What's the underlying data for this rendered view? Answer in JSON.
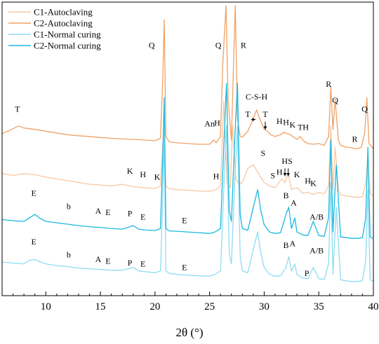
{
  "chart_data": {
    "type": "line",
    "xlabel": "2θ (°)",
    "ylabel": "",
    "xlim": [
      6,
      40
    ],
    "x_ticks": [
      10,
      15,
      20,
      25,
      30,
      35,
      40
    ],
    "y_ticks_shown": false,
    "legend_position": "top-left",
    "series": [
      {
        "name": "C1-Autoclaving",
        "color": "#f8c8a4",
        "x": [
          6,
          7,
          8,
          9,
          10,
          11,
          12,
          13,
          14,
          15,
          16,
          17,
          18,
          19,
          20,
          20.5,
          20.8,
          21.0,
          21.3,
          22,
          23,
          24,
          25,
          25.6,
          26,
          26.3,
          26.6,
          26.9,
          27.1,
          27.4,
          27.7,
          28,
          28.5,
          29.0,
          29.3,
          29.6,
          30,
          30.5,
          31,
          31.6,
          31.9,
          32.2,
          32.5,
          33,
          33.5,
          34,
          34.5,
          35,
          35.5,
          35.9,
          36.1,
          36.3,
          36.5,
          36.8,
          37,
          37.5,
          38,
          38.5,
          39,
          39.3,
          39.5,
          39.7,
          40
        ],
        "y": [
          3.45,
          3.4,
          3.45,
          3.42,
          3.35,
          3.3,
          3.25,
          3.2,
          3.15,
          3.13,
          3.1,
          3.15,
          3.08,
          3.05,
          3.03,
          3.1,
          4.8,
          3.1,
          3.02,
          3.0,
          2.98,
          2.96,
          2.95,
          3.0,
          3.1,
          5.5,
          3.2,
          3.05,
          4.8,
          3.3,
          3.15,
          3.2,
          3.6,
          3.7,
          3.55,
          3.4,
          3.2,
          3.1,
          3.05,
          3.3,
          3.2,
          3.45,
          3.0,
          3.05,
          2.9,
          2.92,
          2.86,
          2.92,
          2.88,
          3.1,
          4.8,
          3.0,
          4.2,
          3.0,
          2.85,
          2.82,
          2.8,
          2.78,
          2.8,
          3.2,
          3.85,
          2.9,
          2.8
        ]
      },
      {
        "name": "C2-Autoclaving",
        "color": "#f0a266",
        "x": [
          6,
          7,
          7.5,
          8,
          9,
          10,
          11,
          12,
          13,
          14,
          15,
          16,
          17,
          18,
          19,
          20,
          20.5,
          20.7,
          20.85,
          21.0,
          21.3,
          22,
          23,
          24,
          25,
          25.4,
          25.6,
          26,
          26.2,
          26.5,
          26.7,
          27.0,
          27.2,
          27.35,
          27.55,
          27.8,
          28,
          28.5,
          29.0,
          29.3,
          29.6,
          30,
          30.3,
          30.6,
          31,
          31.5,
          31.8,
          32.1,
          32.4,
          32.7,
          33,
          33.3,
          33.6,
          34,
          34.5,
          35,
          35.5,
          35.9,
          36.1,
          36.3,
          36.5,
          36.8,
          37,
          37.5,
          38,
          38.5,
          38.9,
          39.2,
          39.4,
          39.6,
          40
        ],
        "y": [
          4.58,
          4.72,
          4.8,
          4.74,
          4.7,
          4.65,
          4.6,
          4.55,
          4.52,
          4.5,
          4.47,
          4.45,
          4.43,
          4.42,
          4.4,
          4.38,
          4.45,
          6.0,
          7.8,
          4.5,
          4.35,
          4.32,
          4.3,
          4.28,
          4.28,
          4.4,
          4.32,
          4.5,
          6.5,
          8.2,
          5.5,
          4.4,
          6.6,
          8.2,
          5.0,
          4.5,
          4.48,
          4.65,
          5.0,
          5.25,
          5.0,
          4.7,
          4.65,
          4.55,
          4.5,
          4.55,
          4.62,
          4.58,
          4.55,
          4.48,
          4.42,
          4.5,
          4.38,
          4.3,
          4.28,
          4.3,
          4.25,
          4.5,
          5.9,
          4.7,
          5.55,
          4.4,
          4.25,
          4.2,
          4.18,
          4.15,
          4.2,
          4.6,
          5.6,
          4.3,
          4.15
        ]
      },
      {
        "name": "C1-Normal curing",
        "color": "#8fdcf2",
        "x": [
          6,
          7,
          8,
          8.5,
          9,
          9.5,
          10,
          11,
          12,
          13,
          14,
          15,
          16,
          17,
          18,
          18.5,
          19,
          20,
          20.5,
          20.7,
          20.85,
          21.0,
          21.3,
          22,
          23,
          24,
          25,
          25.5,
          26,
          26.3,
          26.55,
          26.8,
          27.0,
          27.3,
          27.55,
          27.8,
          28,
          28.5,
          29.0,
          29.4,
          29.7,
          30,
          30.5,
          31,
          31.5,
          32.0,
          32.25,
          32.5,
          32.8,
          33,
          33.5,
          34,
          34.5,
          35,
          35.5,
          35.9,
          36.1,
          36.3,
          36.6,
          37,
          37.5,
          38,
          38.5,
          39,
          39.3,
          39.5,
          39.7,
          40
        ],
        "y": [
          0.95,
          0.92,
          0.9,
          1.0,
          1.02,
          0.95,
          0.9,
          0.85,
          0.82,
          0.78,
          0.76,
          0.74,
          0.72,
          0.72,
          0.8,
          0.7,
          0.68,
          0.65,
          0.7,
          2.6,
          4.4,
          0.7,
          0.63,
          0.6,
          0.58,
          0.56,
          0.55,
          0.6,
          0.7,
          3.0,
          4.8,
          1.2,
          0.9,
          3.2,
          4.8,
          1.1,
          0.7,
          0.65,
          1.3,
          1.8,
          1.2,
          0.8,
          0.6,
          0.55,
          0.56,
          0.8,
          1.1,
          0.7,
          0.9,
          0.6,
          0.5,
          0.48,
          0.8,
          0.48,
          0.46,
          0.9,
          3.2,
          0.6,
          2.5,
          0.45,
          0.42,
          0.4,
          0.4,
          0.42,
          1.0,
          3.0,
          0.45,
          0.4
        ]
      },
      {
        "name": "C2-Normal curing",
        "color": "#1ab8e0",
        "x": [
          6,
          7,
          8,
          8.5,
          9,
          9.5,
          10,
          11,
          12,
          13,
          14,
          15,
          16,
          17,
          18,
          18.5,
          19,
          20,
          20.5,
          20.7,
          20.85,
          21.0,
          21.3,
          22,
          23,
          24,
          25,
          25.5,
          26,
          26.3,
          26.55,
          26.8,
          27.0,
          27.3,
          27.55,
          27.8,
          28,
          28.5,
          29.0,
          29.4,
          29.7,
          30,
          30.5,
          31,
          31.5,
          32.0,
          32.25,
          32.5,
          32.8,
          33,
          33.5,
          34,
          34.5,
          35,
          35.5,
          35.9,
          36.1,
          36.3,
          36.6,
          37,
          37.5,
          38,
          38.5,
          39,
          39.3,
          39.5,
          39.7,
          40
        ],
        "y": [
          2.15,
          2.12,
          2.1,
          2.2,
          2.3,
          2.18,
          2.1,
          2.06,
          2.02,
          1.98,
          1.95,
          1.93,
          1.9,
          1.88,
          1.98,
          1.88,
          1.86,
          1.84,
          1.9,
          3.8,
          5.6,
          1.9,
          1.83,
          1.82,
          1.8,
          1.78,
          1.76,
          1.8,
          1.9,
          4.2,
          6.0,
          2.4,
          2.1,
          4.4,
          6.0,
          2.3,
          1.9,
          1.85,
          2.5,
          3.0,
          2.4,
          2.0,
          1.8,
          1.76,
          1.78,
          2.3,
          2.5,
          1.9,
          2.2,
          1.8,
          1.72,
          1.7,
          2.1,
          1.7,
          1.68,
          2.2,
          4.4,
          1.8,
          3.7,
          1.66,
          1.64,
          1.62,
          1.62,
          1.64,
          2.2,
          4.2,
          1.66,
          1.62
        ]
      }
    ],
    "peak_labels": [
      {
        "text": "Q",
        "x": 19.7,
        "y": 7.0
      },
      {
        "text": "Q",
        "x": 25.8,
        "y": 7.0
      },
      {
        "text": "R",
        "x": 28.1,
        "y": 7.0
      },
      {
        "text": "R",
        "x": 35.9,
        "y": 5.9
      },
      {
        "text": "Q",
        "x": 36.5,
        "y": 5.45
      },
      {
        "text": "Q",
        "x": 39.2,
        "y": 5.2
      },
      {
        "text": "T",
        "x": 7.4,
        "y": 5.2
      },
      {
        "text": "C-S-H",
        "x": 29.3,
        "y": 5.55
      },
      {
        "text": "T",
        "x": 28.5,
        "y": 5.05
      },
      {
        "text": "T",
        "x": 30.1,
        "y": 5.05
      },
      {
        "text": "An",
        "x": 25.0,
        "y": 4.78
      },
      {
        "text": "H",
        "x": 25.7,
        "y": 4.8
      },
      {
        "text": "H",
        "x": 31.4,
        "y": 4.85
      },
      {
        "text": "H",
        "x": 32.0,
        "y": 4.82
      },
      {
        "text": "K",
        "x": 32.6,
        "y": 4.75
      },
      {
        "text": "T",
        "x": 33.3,
        "y": 4.68
      },
      {
        "text": "H",
        "x": 33.8,
        "y": 4.68
      },
      {
        "text": "R",
        "x": 38.3,
        "y": 4.35
      },
      {
        "text": "K",
        "x": 17.7,
        "y": 3.45
      },
      {
        "text": "H",
        "x": 18.9,
        "y": 3.35
      },
      {
        "text": "K",
        "x": 20.2,
        "y": 3.28
      },
      {
        "text": "H",
        "x": 25.6,
        "y": 3.3
      },
      {
        "text": "S",
        "x": 29.9,
        "y": 3.95
      },
      {
        "text": "S",
        "x": 30.8,
        "y": 3.32
      },
      {
        "text": "HS",
        "x": 32.1,
        "y": 3.72
      },
      {
        "text": "H",
        "x": 31.4,
        "y": 3.42
      },
      {
        "text": "K",
        "x": 33.0,
        "y": 3.35
      },
      {
        "text": "H",
        "x": 34.0,
        "y": 3.17
      },
      {
        "text": "K",
        "x": 34.5,
        "y": 3.1
      },
      {
        "text": "E",
        "x": 8.9,
        "y": 2.82
      },
      {
        "text": "b",
        "x": 12.1,
        "y": 2.45
      },
      {
        "text": "A",
        "x": 14.8,
        "y": 2.32
      },
      {
        "text": "E",
        "x": 15.7,
        "y": 2.28
      },
      {
        "text": "P",
        "x": 17.7,
        "y": 2.25
      },
      {
        "text": "E",
        "x": 18.9,
        "y": 2.15
      },
      {
        "text": "E",
        "x": 22.7,
        "y": 2.05
      },
      {
        "text": "B",
        "x": 32.0,
        "y": 2.75
      },
      {
        "text": "A",
        "x": 32.7,
        "y": 2.55
      },
      {
        "text": "A/B",
        "x": 34.8,
        "y": 2.15
      },
      {
        "text": "E",
        "x": 8.9,
        "y": 1.45
      },
      {
        "text": "b",
        "x": 12.1,
        "y": 1.08
      },
      {
        "text": "A",
        "x": 14.8,
        "y": 0.95
      },
      {
        "text": "E",
        "x": 15.7,
        "y": 0.9
      },
      {
        "text": "P",
        "x": 17.7,
        "y": 0.85
      },
      {
        "text": "E",
        "x": 18.9,
        "y": 0.82
      },
      {
        "text": "E",
        "x": 22.7,
        "y": 0.72
      },
      {
        "text": "B",
        "x": 32.0,
        "y": 1.35
      },
      {
        "text": "A",
        "x": 32.6,
        "y": 1.4
      },
      {
        "text": "A/B",
        "x": 34.8,
        "y": 1.2
      },
      {
        "text": "P",
        "x": 33.9,
        "y": 0.55
      }
    ],
    "arrows": [
      {
        "from_x": 28.8,
        "from_y": 4.98,
        "to_x": 29.2,
        "to_y": 4.98
      },
      {
        "from_x": 30.1,
        "from_y": 4.92,
        "to_x": 30.1,
        "to_y": 4.7
      },
      {
        "from_x": 31.9,
        "from_y": 3.6,
        "to_x": 31.9,
        "to_y": 3.38
      },
      {
        "from_x": 32.2,
        "from_y": 3.6,
        "to_x": 32.2,
        "to_y": 3.38
      }
    ]
  }
}
